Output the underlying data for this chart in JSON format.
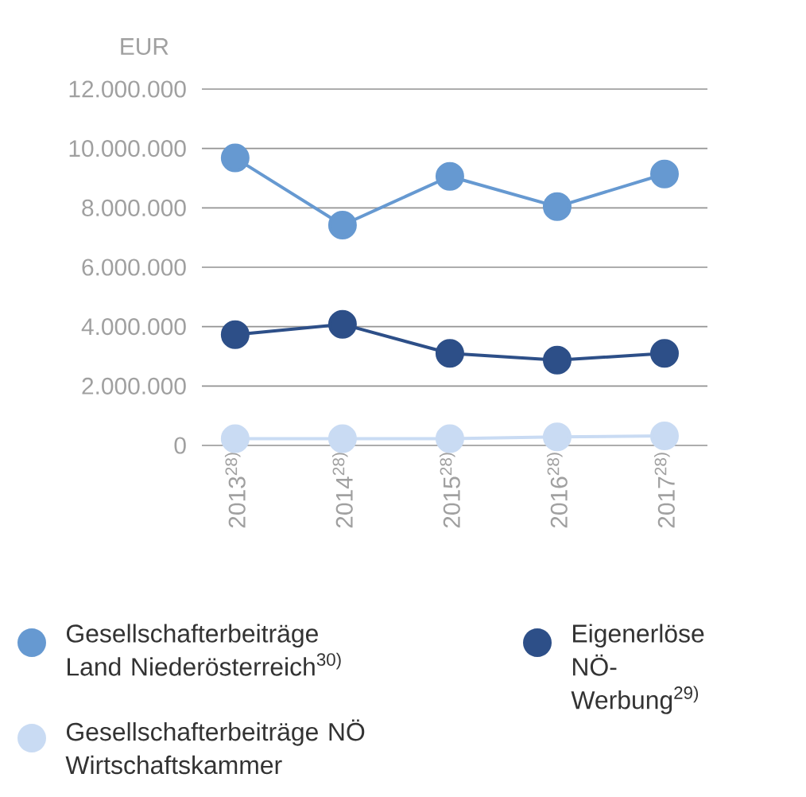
{
  "chart_data": {
    "type": "line",
    "ylabel": "EUR",
    "categories": [
      "2013$^{28)}$",
      "2014$^{28)}$",
      "2015$^{28)}$",
      "2016$^{28)}$",
      "2017$^{28)}$"
    ],
    "series": [
      {
        "name": "Gesellschafterbeiträge Land Niederösterreich$^{30)}$",
        "color": "#6699d1",
        "values": [
          9680000,
          7420000,
          9060000,
          8040000,
          9140000
        ]
      },
      {
        "name": "Eigenerlöse NÖ-Werbung$^{29)}$",
        "color": "#2d4f88",
        "values": [
          3730000,
          4080000,
          3100000,
          2870000,
          3100000
        ]
      },
      {
        "name": "Gesellschafterbeiträge NÖ Wirtschaftskammer",
        "color": "#c9dbf3",
        "values": [
          230000,
          230000,
          230000,
          290000,
          320000
        ]
      }
    ],
    "ylim": [
      0,
      12000000
    ],
    "yticks": [
      0,
      {
        "value": 2000000,
        "label": "2.000.000"
      },
      {
        "value": 4000000,
        "label": "4.000.000"
      },
      {
        "value": 6000000,
        "label": "6.000.000"
      },
      {
        "value": 8000000,
        "label": "8.000.000"
      },
      {
        "value": 10000000,
        "label": "10.000.000"
      },
      {
        "value": 12000000,
        "label": "12.000.000"
      }
    ],
    "grid": "y",
    "legend": "bottom",
    "marker": "circle"
  }
}
